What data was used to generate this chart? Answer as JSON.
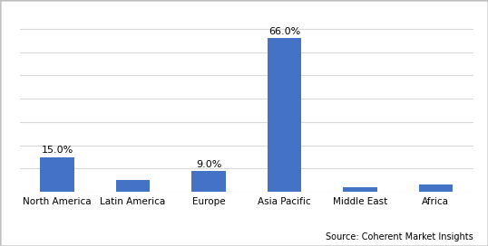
{
  "categories": [
    "North America",
    "Latin America",
    "Europe",
    "Asia Pacific",
    "Middle East",
    "Africa"
  ],
  "values": [
    15.0,
    5.0,
    9.0,
    66.0,
    2.0,
    3.0
  ],
  "labels": [
    "15.0%",
    "",
    "9.0%",
    "66.0%",
    "",
    ""
  ],
  "bar_color": "#4472C4",
  "background_color": "#ffffff",
  "border_color": "#bfbfbf",
  "ylim": [
    0,
    75
  ],
  "yticks": [
    0,
    10,
    20,
    30,
    40,
    50,
    60,
    70
  ],
  "grid_color": "#d9d9d9",
  "source_text": "Source: Coherent Market Insights",
  "label_fontsize": 8,
  "tick_fontsize": 7.5,
  "source_fontsize": 7,
  "bar_width": 0.45
}
